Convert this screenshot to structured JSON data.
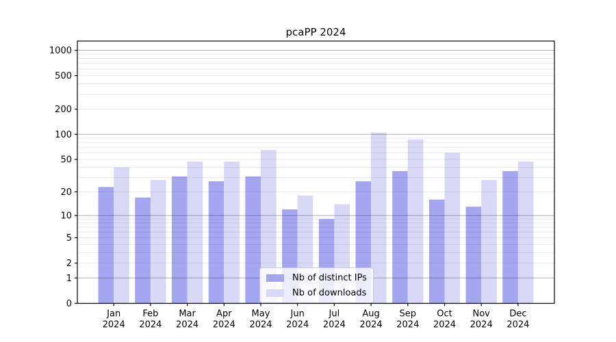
{
  "chart_data": {
    "type": "bar",
    "title": "pcaPP 2024",
    "months": [
      "Jan",
      "Feb",
      "Mar",
      "Apr",
      "May",
      "Jun",
      "Jul",
      "Aug",
      "Sep",
      "Oct",
      "Nov",
      "Dec"
    ],
    "year": "2024",
    "series": [
      {
        "name": "Nb of distinct IPs",
        "color": "#a5a5f2",
        "values": [
          23,
          17,
          31,
          27,
          31,
          12,
          9,
          27,
          36,
          16,
          13,
          36
        ]
      },
      {
        "name": "Nb of downloads",
        "color": "#d9d9f7",
        "values": [
          40,
          28,
          47,
          47,
          65,
          18,
          14,
          105,
          87,
          60,
          28,
          47
        ]
      }
    ],
    "y_scale": "log10(value+1)",
    "y_ticks": [
      0,
      1,
      2,
      5,
      10,
      20,
      50,
      100,
      200,
      500,
      1000
    ],
    "major_gridlines": [
      1,
      10,
      100,
      1000
    ],
    "minor_gridlines": [
      2,
      3,
      4,
      5,
      6,
      7,
      8,
      9,
      20,
      30,
      40,
      50,
      60,
      70,
      80,
      90,
      200,
      300,
      400,
      500,
      600,
      700,
      800,
      900
    ],
    "ylim": [
      0,
      1275
    ],
    "grid": true,
    "legend_position": "lower center"
  },
  "colors": {
    "background": "#ffffff",
    "axis": "#000000",
    "grid_major": "rgba(0,0,0,0.30)",
    "grid_minor": "rgba(0,0,0,0.08)",
    "legend_border": "#cccccc"
  }
}
